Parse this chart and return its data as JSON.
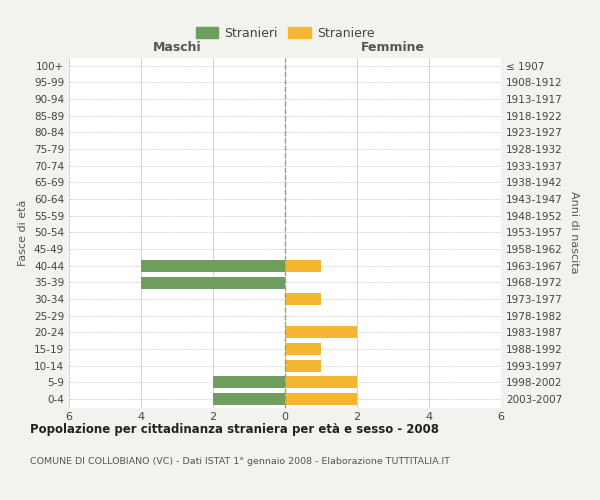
{
  "age_groups": [
    "100+",
    "95-99",
    "90-94",
    "85-89",
    "80-84",
    "75-79",
    "70-74",
    "65-69",
    "60-64",
    "55-59",
    "50-54",
    "45-49",
    "40-44",
    "35-39",
    "30-34",
    "25-29",
    "20-24",
    "15-19",
    "10-14",
    "5-9",
    "0-4"
  ],
  "year_labels": [
    "≤ 1907",
    "1908-1912",
    "1913-1917",
    "1918-1922",
    "1923-1927",
    "1928-1932",
    "1933-1937",
    "1938-1942",
    "1943-1947",
    "1948-1952",
    "1953-1957",
    "1958-1962",
    "1963-1967",
    "1968-1972",
    "1973-1977",
    "1978-1982",
    "1983-1987",
    "1988-1992",
    "1993-1997",
    "1998-2002",
    "2003-2007"
  ],
  "maschi_stranieri": [
    0,
    0,
    0,
    0,
    0,
    0,
    0,
    0,
    0,
    0,
    0,
    0,
    4,
    4,
    0,
    0,
    0,
    0,
    0,
    2,
    2
  ],
  "femmine_straniere": [
    0,
    0,
    0,
    0,
    0,
    0,
    0,
    0,
    0,
    0,
    0,
    0,
    1,
    0,
    1,
    0,
    2,
    1,
    1,
    2,
    2
  ],
  "color_maschi": "#6e9e5e",
  "color_femmine": "#f5b731",
  "title": "Popolazione per cittadinanza straniera per età e sesso - 2008",
  "subtitle": "COMUNE DI COLLOBIANO (VC) - Dati ISTAT 1° gennaio 2008 - Elaborazione TUTTITALIA.IT",
  "xlabel_left": "Maschi",
  "xlabel_right": "Femmine",
  "ylabel_left": "Fasce di età",
  "ylabel_right": "Anni di nascita",
  "legend_maschi": "Stranieri",
  "legend_femmine": "Straniere",
  "xlim": 6,
  "background_color": "#f2f2ee",
  "bar_background": "#ffffff",
  "grid_color": "#cccccc"
}
